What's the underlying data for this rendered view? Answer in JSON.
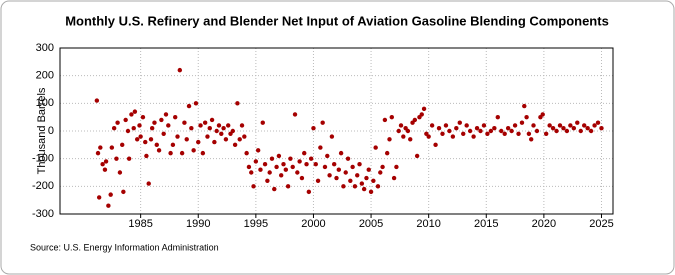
{
  "chart_data": {
    "type": "scatter",
    "title": "Monthly U.S. Refinery and Blender Net Input of Aviation Gasoline Blending Components",
    "y_label": "Thousand Barrels",
    "source": "Source: U.S. Energy Information Administration",
    "color": "#a50000",
    "grid": true,
    "xlim": [
      1978,
      2026
    ],
    "xticks": [
      1985,
      1990,
      1995,
      2000,
      2005,
      2010,
      2015,
      2020,
      2025
    ],
    "ylim": [
      -300,
      300
    ],
    "yticks": [
      -300,
      -200,
      -100,
      0,
      100,
      200,
      300
    ],
    "x": [
      1981.2,
      1981.3,
      1981.4,
      1981.5,
      1981.7,
      1981.9,
      1982.0,
      1982.2,
      1982.4,
      1982.5,
      1982.7,
      1982.9,
      1983.0,
      1983.2,
      1983.4,
      1983.5,
      1983.7,
      1983.9,
      1984.0,
      1984.2,
      1984.4,
      1984.5,
      1984.7,
      1984.9,
      1985.0,
      1985.2,
      1985.4,
      1985.5,
      1985.7,
      1985.9,
      1986.0,
      1986.2,
      1986.4,
      1986.6,
      1986.8,
      1987.0,
      1987.2,
      1987.4,
      1987.6,
      1987.8,
      1988.0,
      1988.2,
      1988.4,
      1988.6,
      1988.8,
      1989.0,
      1989.2,
      1989.4,
      1989.6,
      1989.8,
      1990.0,
      1990.2,
      1990.4,
      1990.6,
      1990.8,
      1991.0,
      1991.2,
      1991.4,
      1991.6,
      1991.8,
      1992.0,
      1992.2,
      1992.4,
      1992.6,
      1992.8,
      1993.0,
      1993.2,
      1993.4,
      1993.6,
      1993.8,
      1994.0,
      1994.2,
      1994.4,
      1994.6,
      1994.8,
      1995.0,
      1995.2,
      1995.4,
      1995.6,
      1995.8,
      1996.0,
      1996.2,
      1996.4,
      1996.6,
      1996.8,
      1997.0,
      1997.2,
      1997.4,
      1997.6,
      1997.8,
      1998.0,
      1998.2,
      1998.4,
      1998.6,
      1998.8,
      1999.0,
      1999.2,
      1999.4,
      1999.6,
      1999.8,
      2000.0,
      2000.2,
      2000.4,
      2000.6,
      2000.8,
      2001.0,
      2001.2,
      2001.4,
      2001.6,
      2001.8,
      2002.0,
      2002.2,
      2002.4,
      2002.6,
      2002.8,
      2003.0,
      2003.2,
      2003.4,
      2003.6,
      2003.8,
      2004.0,
      2004.2,
      2004.4,
      2004.6,
      2004.8,
      2005.0,
      2005.2,
      2005.4,
      2005.6,
      2005.8,
      2006.0,
      2006.2,
      2006.4,
      2006.6,
      2006.8,
      2007.0,
      2007.2,
      2007.4,
      2007.6,
      2007.8,
      2008.0,
      2008.2,
      2008.4,
      2008.6,
      2008.8,
      2009.0,
      2009.2,
      2009.4,
      2009.6,
      2009.8,
      2010.0,
      2010.3,
      2010.6,
      2010.9,
      2011.2,
      2011.5,
      2011.8,
      2012.1,
      2012.4,
      2012.7,
      2013.0,
      2013.3,
      2013.6,
      2013.9,
      2014.2,
      2014.5,
      2014.8,
      2015.1,
      2015.4,
      2015.7,
      2016.0,
      2016.3,
      2016.6,
      2016.9,
      2017.2,
      2017.5,
      2017.8,
      2018.1,
      2018.3,
      2018.5,
      2018.7,
      2018.9,
      2019.1,
      2019.4,
      2019.7,
      2019.9,
      2020.2,
      2020.5,
      2020.8,
      2021.1,
      2021.4,
      2021.7,
      2022.0,
      2022.3,
      2022.6,
      2022.9,
      2023.2,
      2023.5,
      2023.8,
      2024.1,
      2024.4,
      2024.7,
      2025.0
    ],
    "values": [
      110,
      -80,
      -240,
      -60,
      -120,
      -140,
      -110,
      -270,
      -230,
      -60,
      10,
      -100,
      30,
      -150,
      -50,
      -220,
      40,
      0,
      -100,
      60,
      10,
      70,
      -30,
      20,
      -20,
      50,
      -40,
      -90,
      -190,
      -30,
      10,
      30,
      -50,
      -70,
      40,
      -10,
      60,
      20,
      -80,
      -50,
      50,
      -20,
      220,
      -80,
      30,
      -30,
      90,
      10,
      -70,
      100,
      -40,
      20,
      -80,
      30,
      -20,
      10,
      40,
      -40,
      0,
      20,
      -10,
      10,
      -30,
      20,
      -10,
      0,
      -50,
      100,
      -30,
      20,
      -20,
      -80,
      -130,
      -150,
      -200,
      -110,
      -70,
      -140,
      30,
      -120,
      -180,
      -150,
      -100,
      -210,
      -130,
      -90,
      -160,
      -120,
      -140,
      -200,
      -100,
      -130,
      60,
      -150,
      -110,
      -170,
      -80,
      -120,
      -220,
      -100,
      10,
      -120,
      -180,
      -60,
      30,
      -130,
      -90,
      -160,
      -20,
      -120,
      -170,
      -140,
      -80,
      -200,
      -150,
      -100,
      -180,
      -130,
      -200,
      -160,
      -120,
      -190,
      -210,
      -170,
      -140,
      -220,
      -180,
      -60,
      -200,
      -150,
      -130,
      40,
      -80,
      -30,
      50,
      -170,
      -130,
      0,
      20,
      -20,
      10,
      0,
      -30,
      30,
      40,
      -90,
      50,
      60,
      80,
      -10,
      -20,
      20,
      -50,
      10,
      -10,
      20,
      0,
      -20,
      10,
      30,
      -10,
      20,
      0,
      -20,
      10,
      0,
      20,
      -10,
      0,
      10,
      50,
      0,
      -10,
      10,
      0,
      20,
      -10,
      30,
      90,
      50,
      -10,
      -30,
      20,
      0,
      50,
      60,
      -10,
      20,
      10,
      0,
      20,
      10,
      0,
      20,
      10,
      30,
      0,
      20,
      10,
      0,
      20,
      30,
      10
    ]
  }
}
